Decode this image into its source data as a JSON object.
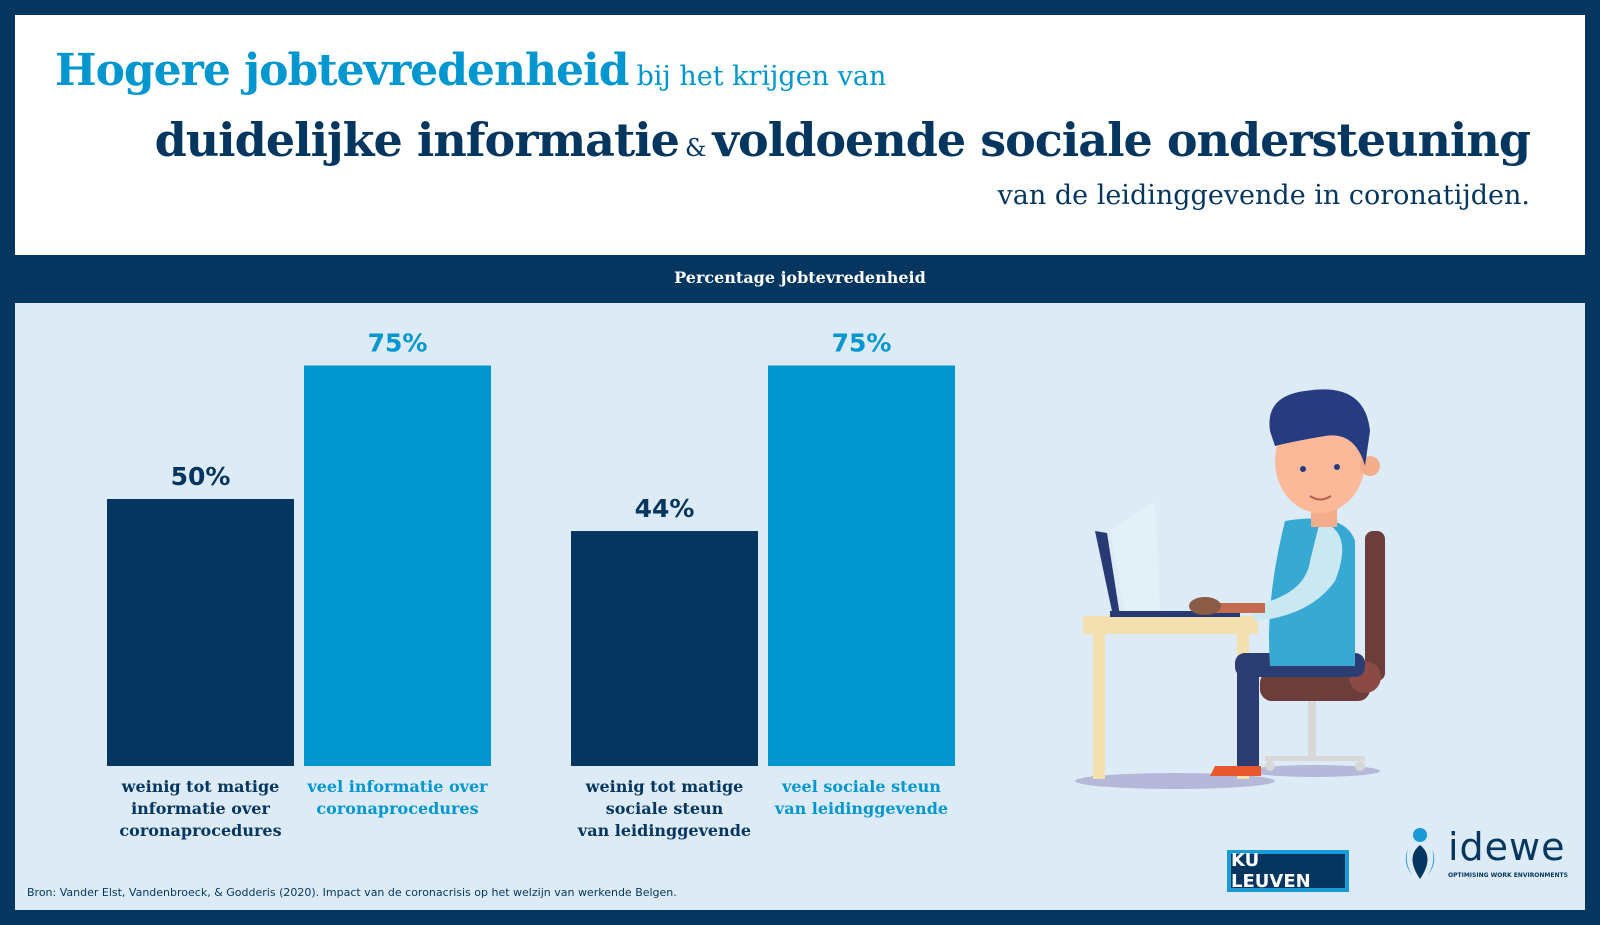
{
  "header": {
    "title_main": "Hogere jobtevredenheid",
    "title_rest": "bij het krijgen van",
    "line2_part1": "duidelijke informatie",
    "line2_amp": "&",
    "line2_part2": "voldoende sociale ondersteuning",
    "line3": "van de leidinggevende in coronatijden."
  },
  "chart_data": {
    "type": "bar",
    "title": "Percentage jobtevredenheid",
    "categories": [
      "weinig tot matige informatie over coronaprocedures",
      "veel informatie over coronaprocedures",
      "weinig tot matige sociale steun van leidinggevende",
      "veel sociale steun van leidinggevende"
    ],
    "category_lines": [
      [
        "weinig tot matige",
        "informatie over",
        "coronaprocedures"
      ],
      [
        "veel informatie over",
        "coronaprocedures"
      ],
      [
        "weinig tot matige",
        "sociale steun",
        "van leidinggevende"
      ],
      [
        "veel sociale steun",
        "van leidinggevende"
      ]
    ],
    "values": [
      50,
      75,
      44,
      75
    ],
    "value_labels": [
      "50%",
      "75%",
      "44%",
      "75%"
    ],
    "ylim": [
      0,
      100
    ],
    "grid": false,
    "colors": [
      "#04365f",
      "#0096cf",
      "#04365f",
      "#0096cf"
    ]
  },
  "footer": {
    "source": "Bron: Vander Elst, Vandenbroeck, & Godderis (2020). Impact van de coronacrisis op het welzijn van werkende Belgen."
  },
  "logos": {
    "ku_leuven": "KU LEUVEN",
    "idewe": "idewe",
    "idewe_tagline": "OPTIMISING WORK ENVIRONMENTS"
  },
  "colors": {
    "navy": "#04365f",
    "blue": "#0096cf",
    "panel": "#dcebf5"
  },
  "illustration": "man-working-at-laptop-illustration"
}
